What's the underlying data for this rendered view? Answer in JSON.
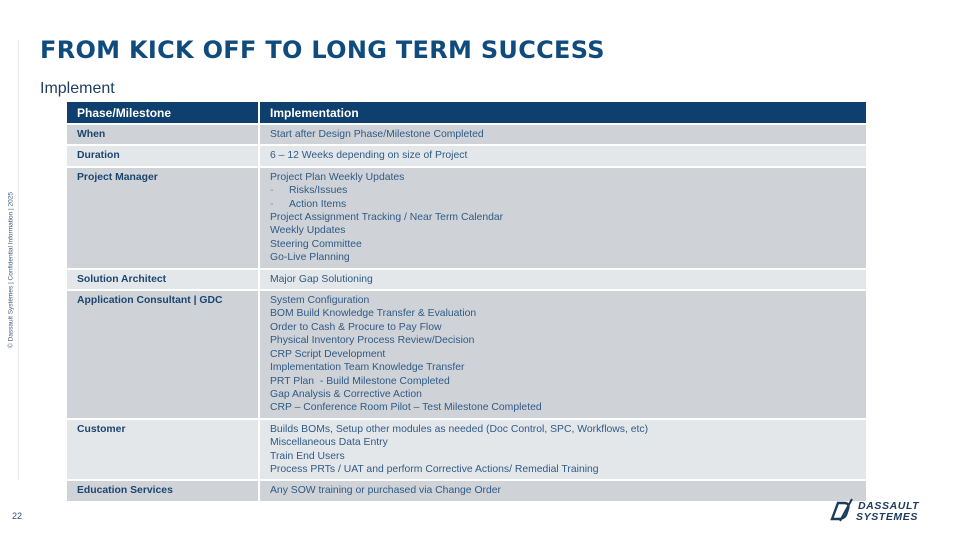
{
  "side_note": "© Dassault Systèmes | Confidential Information | 2025",
  "page_number": "22",
  "title": "FROM KICK OFF TO LONG TERM SUCCESS",
  "subtitle": "Implement",
  "table": {
    "headers": [
      "Phase/Milestone",
      "Implementation"
    ],
    "rows": [
      {
        "label": "When",
        "lines": [
          "Start after Design Phase/Milestone Completed"
        ]
      },
      {
        "label": "Duration",
        "lines": [
          "6 – 12 Weeks depending on size of Project"
        ]
      },
      {
        "label": "Project Manager",
        "lines": [
          "Project Plan Weekly Updates",
          "Risks/Issues",
          "Action Items",
          "Project Assignment Tracking / Near Term Calendar",
          "Weekly Updates",
          "Steering Committee",
          "Go-Live Planning"
        ]
      },
      {
        "label": "Solution Architect",
        "lines": [
          "Major Gap Solutioning"
        ]
      },
      {
        "label": "Application Consultant | GDC",
        "lines": [
          "System Configuration",
          "BOM Build Knowledge Transfer & Evaluation",
          "Order to Cash & Procure to Pay Flow",
          "Physical Inventory Process Review/Decision",
          "CRP Script Development",
          "Implementation Team Knowledge Transfer",
          "PRT Plan  - Build Milestone Completed",
          "Gap Analysis & Corrective Action",
          "CRP – Conference Room Pilot – Test Milestone Completed"
        ]
      },
      {
        "label": "Customer",
        "lines": [
          "Builds BOMs, Setup other modules as needed (Doc Control, SPC, Workflows, etc)",
          "Miscellaneous Data Entry",
          "Train End Users",
          "Process PRTs / UAT and perform Corrective Actions/ Remedial Training"
        ]
      },
      {
        "label": "Education Services",
        "lines": [
          "Any SOW training or purchased via Change Order"
        ]
      }
    ]
  },
  "logo": {
    "line1": "DASSAULT",
    "line2": "SYSTEMES"
  },
  "colors": {
    "header": "#0f3f6e",
    "title": "#0f4b7d",
    "row_dark": "#cfd3d8",
    "row_light": "#e4e7ea"
  }
}
